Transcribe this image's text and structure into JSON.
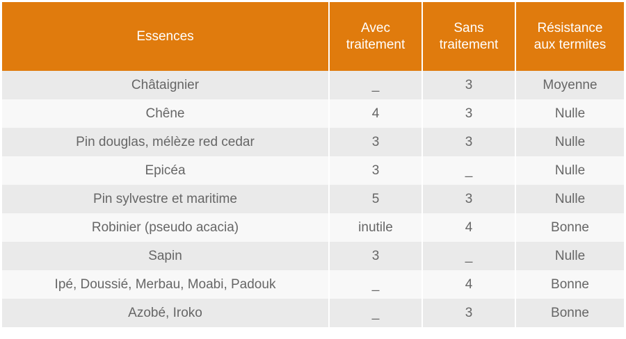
{
  "table": {
    "headers": [
      {
        "lines": [
          "Essences"
        ]
      },
      {
        "lines": [
          "Avec",
          "traitement"
        ]
      },
      {
        "lines": [
          "Sans",
          "traitement"
        ]
      },
      {
        "lines": [
          "Résistance",
          "aux termites"
        ]
      }
    ],
    "rows": [
      [
        "Châtaignier",
        "_",
        "3",
        "Moyenne"
      ],
      [
        "Chêne",
        "4",
        "3",
        "Nulle"
      ],
      [
        "Pin douglas, mélèze red cedar",
        "3",
        "3",
        "Nulle"
      ],
      [
        "Epicéa",
        "3",
        "_",
        "Nulle"
      ],
      [
        "Pin sylvestre et maritime",
        "5",
        "3",
        "Nulle"
      ],
      [
        "Robinier (pseudo acacia)",
        "inutile",
        "4",
        "Bonne"
      ],
      [
        "Sapin",
        "3",
        "_",
        "Nulle"
      ],
      [
        "Ipé, Doussié, Merbau, Moabi, Padouk",
        "_",
        "4",
        "Bonne"
      ],
      [
        "Azobé, Iroko",
        "_",
        "3",
        "Bonne"
      ]
    ]
  },
  "colors": {
    "header_bg": "#e07b0d",
    "header_text": "#ffffff",
    "row_odd_bg": "#eaeaea",
    "row_even_bg": "#f8f8f8",
    "cell_text": "#666666"
  }
}
